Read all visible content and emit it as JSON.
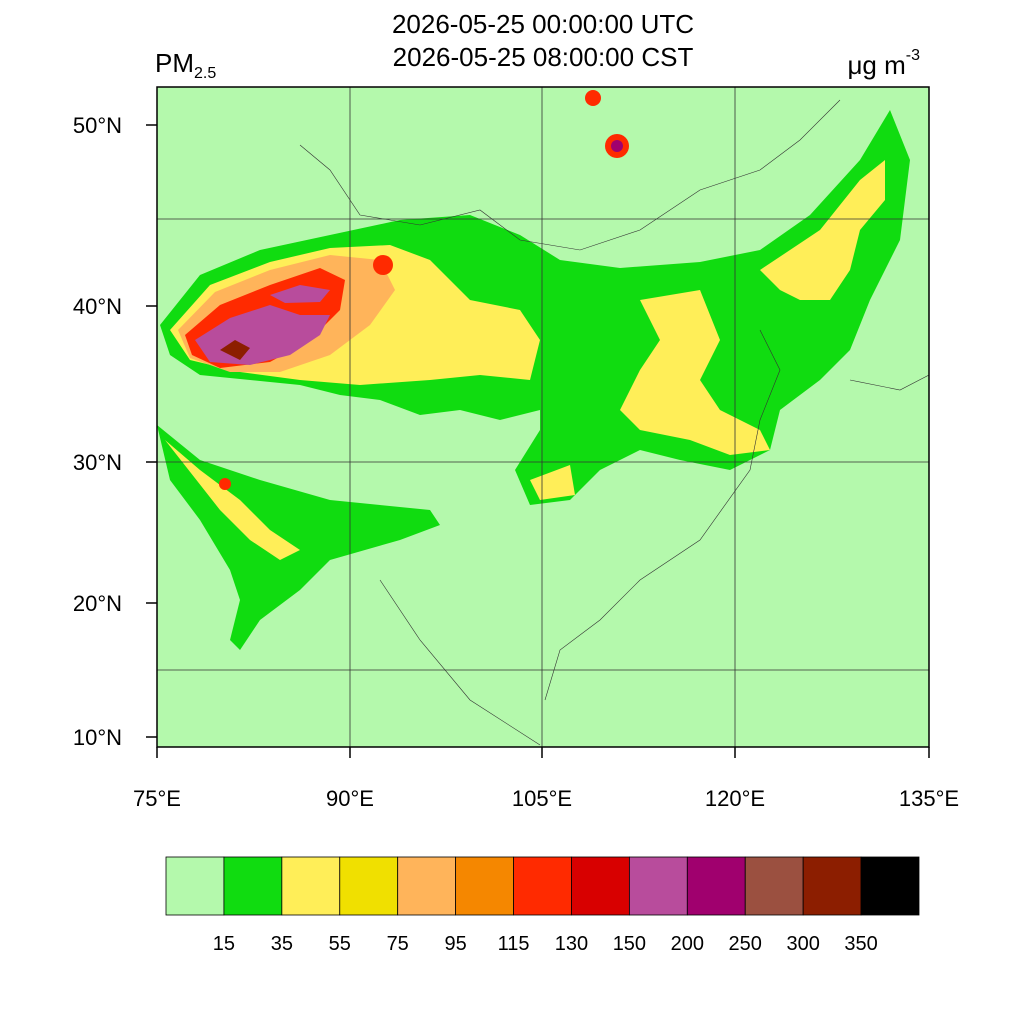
{
  "header": {
    "title_lines": [
      "2026-05-25 00:00:00 UTC",
      "2026-05-25 08:00:00 CST"
    ],
    "variable": "PM",
    "variable_sub": "2.5",
    "units": "μg m",
    "units_sup": "-3"
  },
  "map": {
    "lat_labels": [
      "50°N",
      "40°N",
      "30°N",
      "20°N",
      "10°N"
    ],
    "lon_labels": [
      "75°E",
      "90°E",
      "105°E",
      "120°E",
      "135°E"
    ]
  },
  "colorbar": {
    "colors": [
      "#b4f9ac",
      "#10dc10",
      "#ffee58",
      "#f0e000",
      "#ffb45a",
      "#f58700",
      "#ff2a00",
      "#d80000",
      "#b84c9c",
      "#a0006e",
      "#9b5040",
      "#8c1e00",
      "#000000"
    ],
    "labels": [
      "15",
      "35",
      "55",
      "75",
      "95",
      "115",
      "130",
      "150",
      "200",
      "250",
      "300",
      "350"
    ]
  }
}
